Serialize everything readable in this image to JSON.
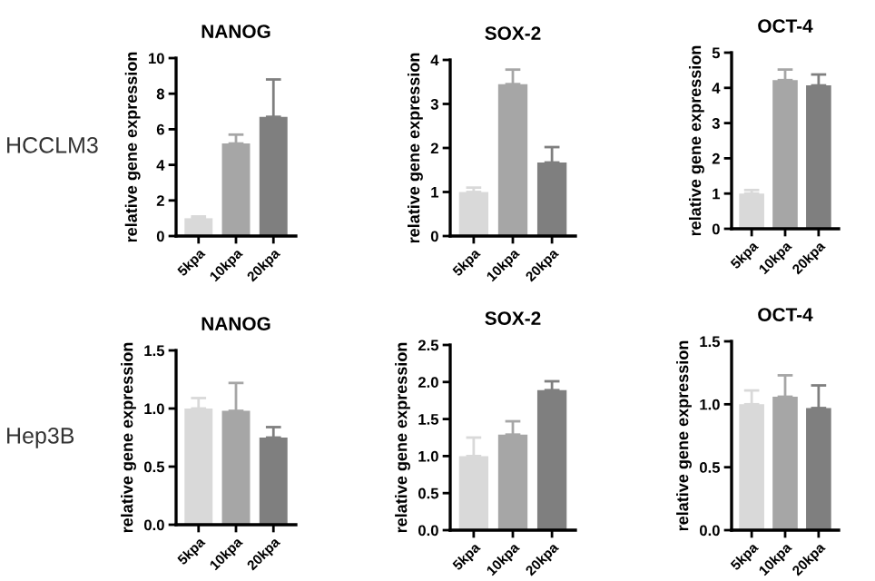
{
  "chart_data": [
    {
      "type": "bar",
      "title": "NANOG",
      "ylabel": "relative gene expression",
      "annotations": [
        "HCCLM3"
      ],
      "categories": [
        "5kpa",
        "10kpa",
        "20kpa"
      ],
      "values": [
        1.0,
        5.2,
        6.7
      ],
      "errors": [
        [
          1.0,
          1.1
        ],
        [
          5.2,
          5.7
        ],
        [
          6.7,
          8.8
        ]
      ],
      "colors": [
        "#d9d9d9",
        "#a6a6a6",
        "#7f7f7f"
      ],
      "ylim": [
        0,
        10
      ],
      "yticks": [
        0,
        2,
        4,
        6,
        8,
        10
      ],
      "grid": false
    },
    {
      "type": "bar",
      "title": "SOX-2",
      "ylabel": "relative gene expression",
      "categories": [
        "5kpa",
        "10kpa",
        "20kpa"
      ],
      "values": [
        1.0,
        3.45,
        1.67
      ],
      "errors": [
        [
          1.0,
          1.1
        ],
        [
          3.45,
          3.78
        ],
        [
          1.67,
          2.02
        ]
      ],
      "colors": [
        "#d9d9d9",
        "#a6a6a6",
        "#7f7f7f"
      ],
      "ylim": [
        0,
        4
      ],
      "yticks": [
        0,
        1,
        2,
        3,
        4
      ],
      "grid": false
    },
    {
      "type": "bar",
      "title": "OCT-4",
      "ylabel": "relative gene expression",
      "categories": [
        "5kpa",
        "10kpa",
        "20kpa"
      ],
      "values": [
        1.0,
        4.22,
        4.07
      ],
      "errors": [
        [
          1.0,
          1.1
        ],
        [
          4.22,
          4.52
        ],
        [
          4.07,
          4.38
        ]
      ],
      "colors": [
        "#d9d9d9",
        "#a6a6a6",
        "#7f7f7f"
      ],
      "ylim": [
        0,
        5
      ],
      "yticks": [
        0,
        1,
        2,
        3,
        4,
        5
      ],
      "grid": false
    },
    {
      "type": "bar",
      "title": "NANOG",
      "ylabel": "relative gene expression",
      "annotations": [
        "Hep3B"
      ],
      "categories": [
        "5kpa",
        "10kpa",
        "20kpa"
      ],
      "values": [
        1.0,
        0.98,
        0.75
      ],
      "errors": [
        [
          1.0,
          1.09
        ],
        [
          0.98,
          1.22
        ],
        [
          0.75,
          0.84
        ]
      ],
      "colors": [
        "#d9d9d9",
        "#a6a6a6",
        "#7f7f7f"
      ],
      "ylim": [
        0,
        1.5
      ],
      "yticks": [
        {
          "value": 0,
          "label": "0.0"
        },
        0.5,
        {
          "value": 1,
          "label": "1.0"
        },
        1.5
      ],
      "grid": false
    },
    {
      "type": "bar",
      "title": "SOX-2",
      "ylabel": "relative gene expression",
      "categories": [
        "5kpa",
        "10kpa",
        "20kpa"
      ],
      "values": [
        1.0,
        1.29,
        1.89
      ],
      "errors": [
        [
          1.0,
          1.25
        ],
        [
          1.29,
          1.47
        ],
        [
          1.89,
          2.01
        ]
      ],
      "colors": [
        "#d9d9d9",
        "#a6a6a6",
        "#7f7f7f"
      ],
      "ylim": [
        0,
        2.5
      ],
      "yticks": [
        {
          "value": 0,
          "label": "0.0"
        },
        0.5,
        {
          "value": 1,
          "label": "1.0"
        },
        1.5,
        {
          "value": 2,
          "label": "2.0"
        },
        2.5
      ],
      "grid": false
    },
    {
      "type": "bar",
      "title": "OCT-4",
      "ylabel": "relative gene expression",
      "categories": [
        "5kpa",
        "10kpa",
        "20kpa"
      ],
      "values": [
        1.0,
        1.06,
        0.97
      ],
      "errors": [
        [
          1.0,
          1.11
        ],
        [
          1.06,
          1.23
        ],
        [
          0.97,
          1.15
        ]
      ],
      "colors": [
        "#d9d9d9",
        "#a6a6a6",
        "#7f7f7f"
      ],
      "ylim": [
        0,
        1.5
      ],
      "yticks": [
        {
          "value": 0,
          "label": "0.0"
        },
        0.5,
        {
          "value": 1,
          "label": "1.0"
        },
        1.5
      ],
      "grid": false
    }
  ]
}
